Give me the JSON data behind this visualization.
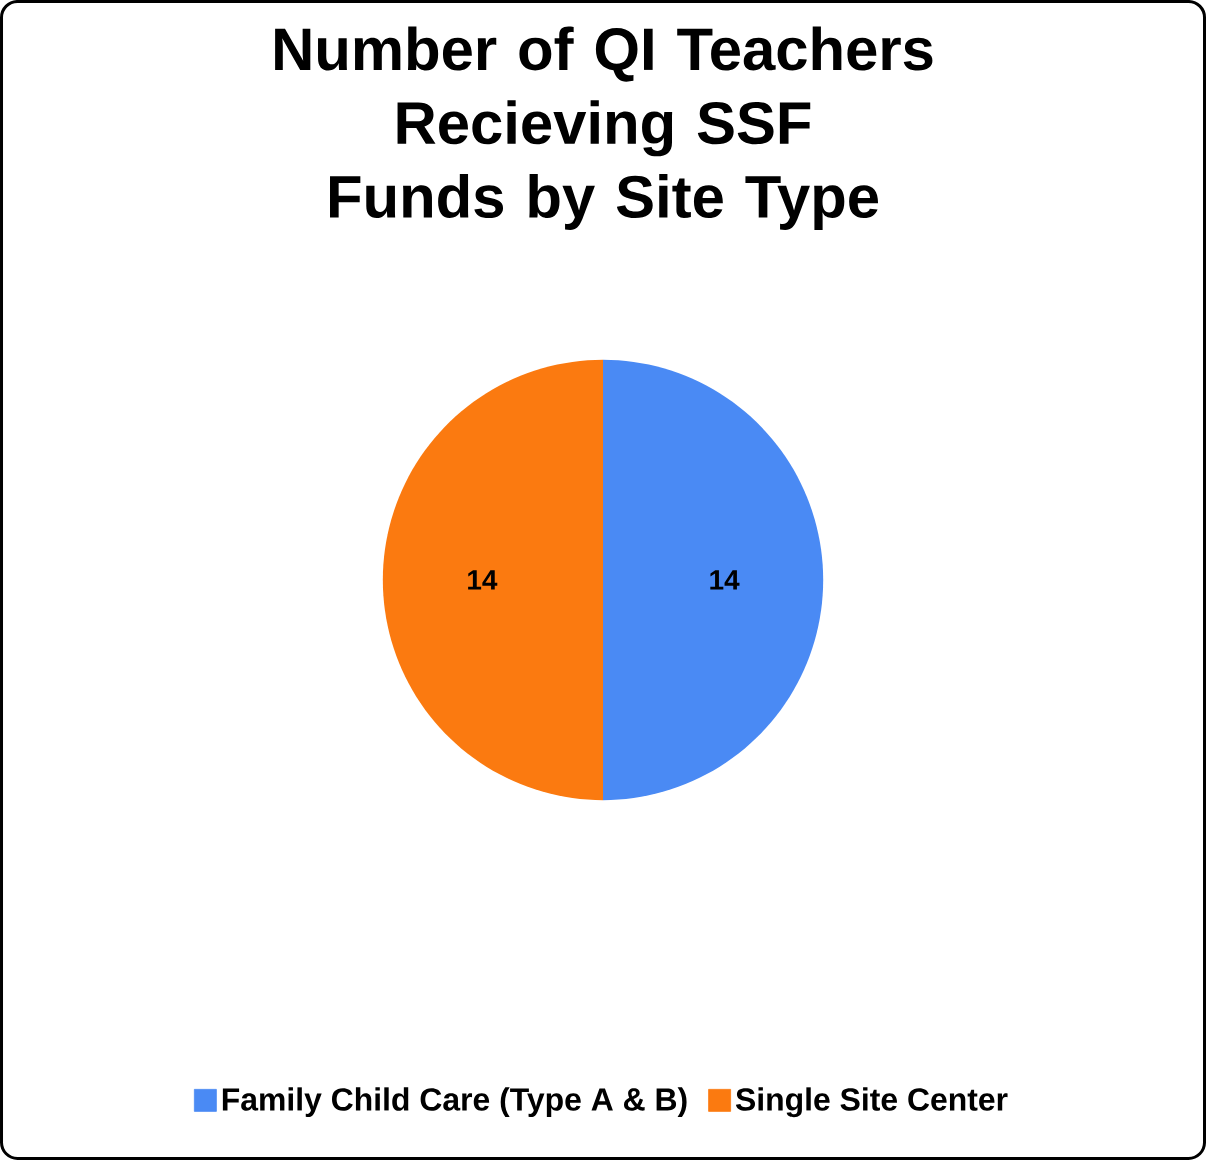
{
  "chart_data": {
    "type": "pie",
    "title": "Number of QI Teachers Recieving SSF Funds by Site Type",
    "categories": [
      "Family Child Care (Type A & B)",
      "Single Site Center"
    ],
    "values": [
      14,
      14
    ],
    "colors": [
      "#4a8af4",
      "#fb7a10"
    ],
    "data_labels": true,
    "legend": "bottom"
  }
}
